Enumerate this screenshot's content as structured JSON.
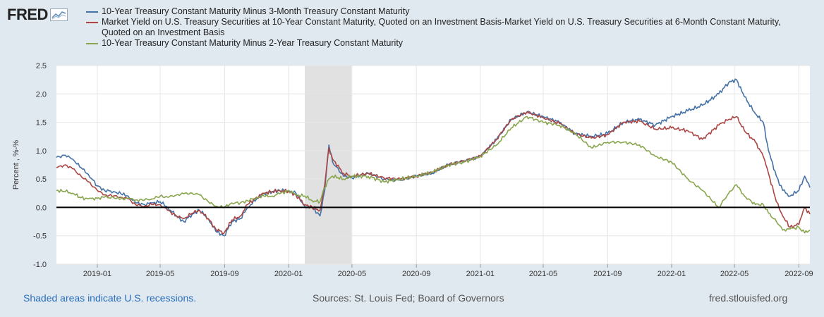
{
  "logo": {
    "text": "FRED",
    "graph_icon": "fred-graph-icon"
  },
  "chart_data": {
    "type": "line",
    "ylabel": "Percent , %-%",
    "ylim": [
      -1.0,
      2.5
    ],
    "yticks": [
      "2.5",
      "2.0",
      "1.5",
      "1.0",
      "0.5",
      "0.0",
      "-0.5",
      "-1.0"
    ],
    "xlim": [
      "2018-10-15",
      "2022-09-22"
    ],
    "xticks": [
      "2019-01",
      "2019-05",
      "2019-09",
      "2020-01",
      "2020-05",
      "2020-09",
      "2021-01",
      "2021-05",
      "2021-09",
      "2022-01",
      "2022-05",
      "2022-09"
    ],
    "grid": true,
    "zero_line": true,
    "recession": {
      "start": "2020-02-01",
      "end": "2020-04-30"
    },
    "series": [
      {
        "name": "10-Year Treasury Constant Maturity Minus 3-Month Treasury Constant Maturity",
        "color": "#4572a7",
        "points": [
          [
            "2018-10-15",
            0.88
          ],
          [
            "2018-11-01",
            0.92
          ],
          [
            "2018-11-15",
            0.85
          ],
          [
            "2018-12-01",
            0.7
          ],
          [
            "2018-12-15",
            0.58
          ],
          [
            "2019-01-01",
            0.38
          ],
          [
            "2019-01-15",
            0.3
          ],
          [
            "2019-02-01",
            0.28
          ],
          [
            "2019-02-15",
            0.24
          ],
          [
            "2019-03-01",
            0.2
          ],
          [
            "2019-03-15",
            0.08
          ],
          [
            "2019-04-01",
            0.05
          ],
          [
            "2019-04-15",
            0.08
          ],
          [
            "2019-05-01",
            0.1
          ],
          [
            "2019-05-15",
            0.0
          ],
          [
            "2019-06-01",
            -0.15
          ],
          [
            "2019-06-15",
            -0.25
          ],
          [
            "2019-07-01",
            -0.12
          ],
          [
            "2019-07-15",
            -0.05
          ],
          [
            "2019-08-01",
            -0.2
          ],
          [
            "2019-08-15",
            -0.42
          ],
          [
            "2019-08-31",
            -0.5
          ],
          [
            "2019-09-15",
            -0.25
          ],
          [
            "2019-10-01",
            -0.2
          ],
          [
            "2019-10-15",
            0.0
          ],
          [
            "2019-11-01",
            0.15
          ],
          [
            "2019-11-15",
            0.25
          ],
          [
            "2019-12-01",
            0.28
          ],
          [
            "2019-12-15",
            0.3
          ],
          [
            "2020-01-01",
            0.3
          ],
          [
            "2020-01-15",
            0.25
          ],
          [
            "2020-02-01",
            0.02
          ],
          [
            "2020-02-15",
            0.0
          ],
          [
            "2020-03-01",
            -0.15
          ],
          [
            "2020-03-10",
            0.3
          ],
          [
            "2020-03-18",
            1.1
          ],
          [
            "2020-03-25",
            0.8
          ],
          [
            "2020-04-15",
            0.55
          ],
          [
            "2020-05-01",
            0.52
          ],
          [
            "2020-06-01",
            0.6
          ],
          [
            "2020-07-01",
            0.5
          ],
          [
            "2020-08-01",
            0.48
          ],
          [
            "2020-09-01",
            0.55
          ],
          [
            "2020-10-01",
            0.6
          ],
          [
            "2020-11-01",
            0.75
          ],
          [
            "2020-12-01",
            0.82
          ],
          [
            "2021-01-01",
            0.9
          ],
          [
            "2021-02-01",
            1.2
          ],
          [
            "2021-03-01",
            1.55
          ],
          [
            "2021-03-31",
            1.68
          ],
          [
            "2021-05-01",
            1.6
          ],
          [
            "2021-06-01",
            1.5
          ],
          [
            "2021-07-01",
            1.3
          ],
          [
            "2021-08-01",
            1.25
          ],
          [
            "2021-09-01",
            1.3
          ],
          [
            "2021-10-01",
            1.5
          ],
          [
            "2021-11-01",
            1.55
          ],
          [
            "2021-12-01",
            1.45
          ],
          [
            "2022-01-01",
            1.6
          ],
          [
            "2022-02-01",
            1.7
          ],
          [
            "2022-03-01",
            1.8
          ],
          [
            "2022-04-01",
            2.0
          ],
          [
            "2022-04-20",
            2.2
          ],
          [
            "2022-05-05",
            2.25
          ],
          [
            "2022-05-20",
            1.95
          ],
          [
            "2022-06-10",
            1.65
          ],
          [
            "2022-06-25",
            1.5
          ],
          [
            "2022-07-05",
            1.0
          ],
          [
            "2022-07-20",
            0.55
          ],
          [
            "2022-08-01",
            0.3
          ],
          [
            "2022-08-15",
            0.2
          ],
          [
            "2022-09-01",
            0.3
          ],
          [
            "2022-09-12",
            0.55
          ],
          [
            "2022-09-22",
            0.35
          ]
        ]
      },
      {
        "name": "Market Yield on U.S. Treasury Securities at 10-Year Constant Maturity, Quoted on an Investment Basis-Market Yield on U.S. Treasury Securities at 6-Month Constant Maturity, Quoted on an Investment Basis",
        "color": "#aa4643",
        "points": [
          [
            "2018-10-15",
            0.7
          ],
          [
            "2018-11-01",
            0.75
          ],
          [
            "2018-11-15",
            0.68
          ],
          [
            "2018-12-01",
            0.55
          ],
          [
            "2018-12-15",
            0.45
          ],
          [
            "2019-01-01",
            0.3
          ],
          [
            "2019-01-15",
            0.22
          ],
          [
            "2019-02-01",
            0.2
          ],
          [
            "2019-02-15",
            0.18
          ],
          [
            "2019-03-01",
            0.15
          ],
          [
            "2019-03-15",
            0.05
          ],
          [
            "2019-04-01",
            0.02
          ],
          [
            "2019-04-15",
            0.05
          ],
          [
            "2019-05-01",
            0.05
          ],
          [
            "2019-05-15",
            -0.05
          ],
          [
            "2019-06-01",
            -0.15
          ],
          [
            "2019-06-15",
            -0.2
          ],
          [
            "2019-07-01",
            -0.1
          ],
          [
            "2019-07-15",
            -0.05
          ],
          [
            "2019-08-01",
            -0.2
          ],
          [
            "2019-08-15",
            -0.38
          ],
          [
            "2019-08-31",
            -0.45
          ],
          [
            "2019-09-15",
            -0.22
          ],
          [
            "2019-10-01",
            -0.15
          ],
          [
            "2019-10-15",
            0.05
          ],
          [
            "2019-11-01",
            0.18
          ],
          [
            "2019-11-15",
            0.25
          ],
          [
            "2019-12-01",
            0.28
          ],
          [
            "2019-12-15",
            0.3
          ],
          [
            "2020-01-01",
            0.28
          ],
          [
            "2020-01-15",
            0.22
          ],
          [
            "2020-02-01",
            0.05
          ],
          [
            "2020-02-15",
            0.0
          ],
          [
            "2020-03-01",
            -0.05
          ],
          [
            "2020-03-10",
            0.4
          ],
          [
            "2020-03-18",
            1.05
          ],
          [
            "2020-03-25",
            0.85
          ],
          [
            "2020-04-15",
            0.6
          ],
          [
            "2020-05-01",
            0.55
          ],
          [
            "2020-06-01",
            0.6
          ],
          [
            "2020-07-01",
            0.52
          ],
          [
            "2020-08-01",
            0.5
          ],
          [
            "2020-09-01",
            0.55
          ],
          [
            "2020-10-01",
            0.62
          ],
          [
            "2020-11-01",
            0.75
          ],
          [
            "2020-12-01",
            0.82
          ],
          [
            "2021-01-01",
            0.9
          ],
          [
            "2021-02-01",
            1.2
          ],
          [
            "2021-03-01",
            1.55
          ],
          [
            "2021-03-31",
            1.68
          ],
          [
            "2021-05-01",
            1.58
          ],
          [
            "2021-06-01",
            1.48
          ],
          [
            "2021-07-01",
            1.3
          ],
          [
            "2021-08-01",
            1.22
          ],
          [
            "2021-09-01",
            1.28
          ],
          [
            "2021-10-01",
            1.5
          ],
          [
            "2021-11-01",
            1.52
          ],
          [
            "2021-12-01",
            1.38
          ],
          [
            "2022-01-01",
            1.4
          ],
          [
            "2022-02-01",
            1.35
          ],
          [
            "2022-03-01",
            1.2
          ],
          [
            "2022-04-01",
            1.45
          ],
          [
            "2022-04-20",
            1.55
          ],
          [
            "2022-05-05",
            1.6
          ],
          [
            "2022-05-20",
            1.35
          ],
          [
            "2022-06-10",
            1.15
          ],
          [
            "2022-06-25",
            0.9
          ],
          [
            "2022-07-05",
            0.6
          ],
          [
            "2022-07-20",
            0.1
          ],
          [
            "2022-08-01",
            -0.15
          ],
          [
            "2022-08-15",
            -0.35
          ],
          [
            "2022-09-01",
            -0.3
          ],
          [
            "2022-09-12",
            0.0
          ],
          [
            "2022-09-22",
            -0.12
          ]
        ]
      },
      {
        "name": "10-Year Treasury Constant Maturity Minus 2-Year Treasury Constant Maturity",
        "color": "#89a54e",
        "points": [
          [
            "2018-10-15",
            0.3
          ],
          [
            "2018-11-01",
            0.28
          ],
          [
            "2018-11-15",
            0.25
          ],
          [
            "2018-12-01",
            0.17
          ],
          [
            "2018-12-15",
            0.15
          ],
          [
            "2019-01-01",
            0.16
          ],
          [
            "2019-01-15",
            0.18
          ],
          [
            "2019-02-01",
            0.17
          ],
          [
            "2019-02-15",
            0.15
          ],
          [
            "2019-03-01",
            0.16
          ],
          [
            "2019-03-15",
            0.13
          ],
          [
            "2019-04-01",
            0.13
          ],
          [
            "2019-04-15",
            0.15
          ],
          [
            "2019-05-01",
            0.2
          ],
          [
            "2019-05-15",
            0.18
          ],
          [
            "2019-06-01",
            0.22
          ],
          [
            "2019-06-15",
            0.24
          ],
          [
            "2019-07-01",
            0.25
          ],
          [
            "2019-07-15",
            0.22
          ],
          [
            "2019-08-01",
            0.1
          ],
          [
            "2019-08-15",
            0.02
          ],
          [
            "2019-08-31",
            0.0
          ],
          [
            "2019-09-15",
            0.08
          ],
          [
            "2019-10-01",
            0.08
          ],
          [
            "2019-10-15",
            0.12
          ],
          [
            "2019-11-01",
            0.17
          ],
          [
            "2019-11-15",
            0.2
          ],
          [
            "2019-12-01",
            0.2
          ],
          [
            "2019-12-15",
            0.24
          ],
          [
            "2020-01-01",
            0.3
          ],
          [
            "2020-01-15",
            0.22
          ],
          [
            "2020-02-01",
            0.2
          ],
          [
            "2020-02-15",
            0.12
          ],
          [
            "2020-03-01",
            0.1
          ],
          [
            "2020-03-10",
            0.35
          ],
          [
            "2020-03-18",
            0.5
          ],
          [
            "2020-03-25",
            0.55
          ],
          [
            "2020-04-15",
            0.5
          ],
          [
            "2020-05-01",
            0.55
          ],
          [
            "2020-06-01",
            0.55
          ],
          [
            "2020-07-01",
            0.45
          ],
          [
            "2020-08-01",
            0.5
          ],
          [
            "2020-09-01",
            0.55
          ],
          [
            "2020-10-01",
            0.62
          ],
          [
            "2020-11-01",
            0.75
          ],
          [
            "2020-12-01",
            0.8
          ],
          [
            "2021-01-01",
            0.9
          ],
          [
            "2021-02-01",
            1.1
          ],
          [
            "2021-03-01",
            1.4
          ],
          [
            "2021-03-31",
            1.6
          ],
          [
            "2021-05-01",
            1.5
          ],
          [
            "2021-06-01",
            1.45
          ],
          [
            "2021-07-01",
            1.3
          ],
          [
            "2021-08-01",
            1.05
          ],
          [
            "2021-09-01",
            1.15
          ],
          [
            "2021-10-01",
            1.15
          ],
          [
            "2021-11-01",
            1.1
          ],
          [
            "2021-12-01",
            0.9
          ],
          [
            "2022-01-01",
            0.8
          ],
          [
            "2022-02-01",
            0.5
          ],
          [
            "2022-03-01",
            0.3
          ],
          [
            "2022-04-01",
            0.0
          ],
          [
            "2022-04-20",
            0.25
          ],
          [
            "2022-05-05",
            0.4
          ],
          [
            "2022-05-20",
            0.2
          ],
          [
            "2022-06-10",
            0.05
          ],
          [
            "2022-06-25",
            0.05
          ],
          [
            "2022-07-05",
            -0.1
          ],
          [
            "2022-07-20",
            -0.25
          ],
          [
            "2022-08-01",
            -0.4
          ],
          [
            "2022-08-15",
            -0.38
          ],
          [
            "2022-09-01",
            -0.35
          ],
          [
            "2022-09-12",
            -0.45
          ],
          [
            "2022-09-22",
            -0.4
          ]
        ]
      }
    ]
  },
  "footer": {
    "recession_note": "Shaded areas indicate U.S. recessions.",
    "sources": "Sources: St. Louis Fed; Board of Governors",
    "site": "fred.stlouisfed.org"
  }
}
